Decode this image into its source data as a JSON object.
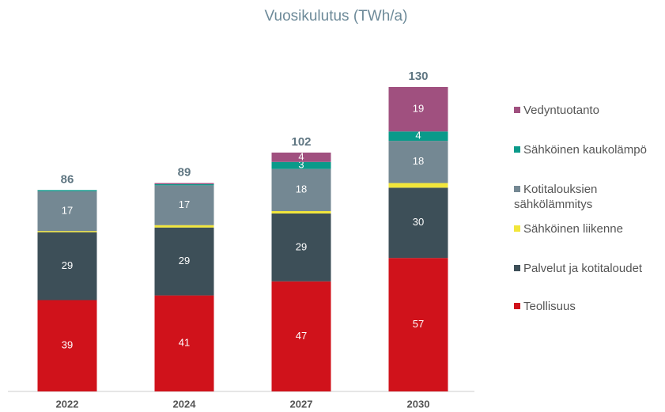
{
  "chart_data": {
    "type": "stacked-bar",
    "title": "Vuosikulutus (TWh/a)",
    "categories": [
      "2022",
      "2024",
      "2027",
      "2030"
    ],
    "totals": [
      86,
      89,
      102,
      130
    ],
    "series": [
      {
        "name": "Teollisuus",
        "color": "#d0121b",
        "values": [
          39,
          41,
          47,
          57
        ]
      },
      {
        "name": "Palvelut ja kotitaloudet",
        "color": "#3d4f58",
        "values": [
          29,
          29,
          29,
          30
        ]
      },
      {
        "name": "Sähköinen liikenne",
        "color": "#f2e63a",
        "values": [
          0.5,
          1,
          1,
          2
        ]
      },
      {
        "name": "Kotitalouksien sähkölämmitys",
        "color": "#748893",
        "values": [
          17,
          17,
          18,
          18
        ]
      },
      {
        "name": "Sähköinen kaukolämpö",
        "color": "#0a9a8a",
        "values": [
          0.5,
          0.5,
          3,
          4
        ]
      },
      {
        "name": "Vedyntuotanto",
        "color": "#a0507f",
        "values": [
          0,
          0.5,
          4,
          19
        ]
      }
    ]
  }
}
